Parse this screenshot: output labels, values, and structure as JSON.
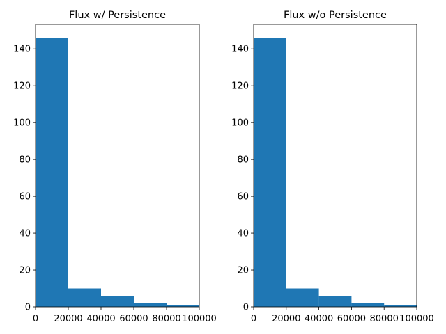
{
  "chart_data": [
    {
      "type": "bar",
      "title": "Flux w/ Persistence",
      "xlabel": "",
      "ylabel": "",
      "bin_edges": [
        0,
        20000,
        40000,
        60000,
        80000,
        100000
      ],
      "values": [
        146,
        10,
        6,
        2,
        1
      ],
      "xlim": [
        0,
        100000
      ],
      "ylim": [
        0,
        153.3
      ],
      "xticks": [
        0,
        20000,
        40000,
        60000,
        80000,
        100000
      ],
      "xtick_labels": [
        "0",
        "20000",
        "40000",
        "60000",
        "80000",
        "100000"
      ],
      "yticks": [
        0,
        20,
        40,
        60,
        80,
        100,
        120,
        140
      ],
      "ytick_labels": [
        "0",
        "20",
        "40",
        "60",
        "80",
        "100",
        "120",
        "140"
      ],
      "grid": false,
      "bar_color": "#1f77b4"
    },
    {
      "type": "bar",
      "title": "Flux w/o Persistence",
      "xlabel": "",
      "ylabel": "",
      "bin_edges": [
        0,
        20000,
        40000,
        60000,
        80000,
        100000
      ],
      "values": [
        146,
        10,
        6,
        2,
        1
      ],
      "xlim": [
        0,
        100000
      ],
      "ylim": [
        0,
        153.3
      ],
      "xticks": [
        0,
        20000,
        40000,
        60000,
        80000,
        100000
      ],
      "xtick_labels": [
        "0",
        "20000",
        "40000",
        "60000",
        "80000",
        "100000"
      ],
      "yticks": [
        0,
        20,
        40,
        60,
        80,
        100,
        120,
        140
      ],
      "ytick_labels": [
        "0",
        "20",
        "40",
        "60",
        "80",
        "100",
        "120",
        "140"
      ],
      "grid": false,
      "bar_color": "#1f77b4"
    }
  ]
}
